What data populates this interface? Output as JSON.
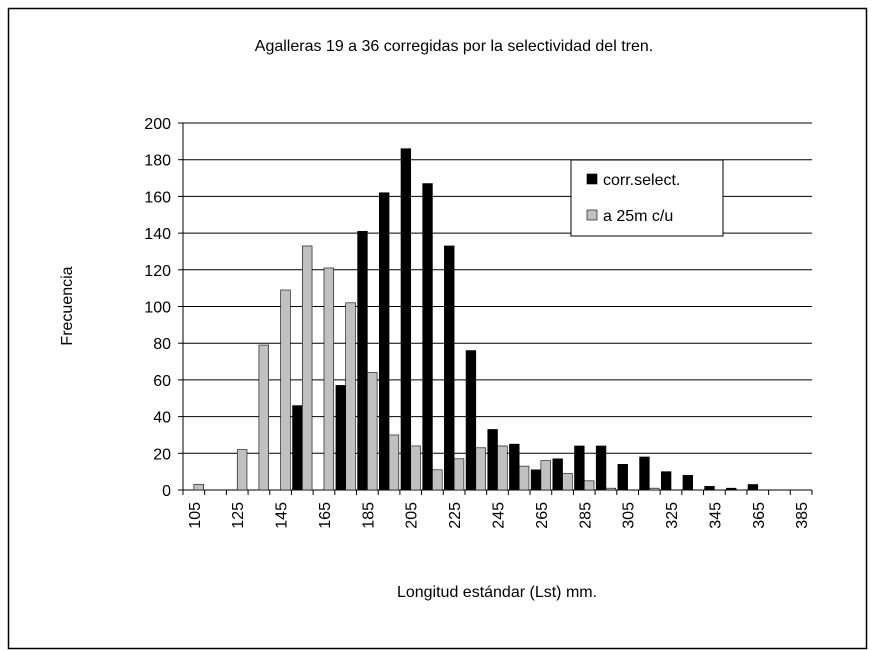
{
  "chart_data": {
    "type": "bar",
    "title": "Agalleras 19 a 36 corregidas por la selectividad del tren.",
    "x_label": "Longitud estándar (Lst) mm.",
    "y_label": "Frecuencia",
    "categories": [
      "105",
      null,
      "125",
      null,
      "145",
      null,
      "165",
      null,
      "185",
      null,
      "205",
      null,
      "225",
      null,
      "245",
      null,
      "265",
      null,
      "285",
      null,
      "305",
      null,
      "325",
      null,
      "345",
      null,
      "365",
      null,
      "385"
    ],
    "series": [
      {
        "name": "corr.select.",
        "color": "#000000",
        "values": [
          0,
          0,
          0,
          0,
          0,
          46,
          0,
          57,
          141,
          162,
          186,
          167,
          133,
          76,
          33,
          25,
          11,
          17,
          24,
          24,
          14,
          18,
          10,
          8,
          2,
          1,
          3,
          0,
          0
        ]
      },
      {
        "name": "a 25m c/u",
        "color": "#c0c0c0",
        "values": [
          3,
          0,
          22,
          79,
          109,
          133,
          121,
          102,
          64,
          30,
          24,
          11,
          17,
          23,
          24,
          13,
          16,
          9,
          5,
          1,
          0,
          1,
          0,
          0,
          0,
          0,
          0,
          0,
          0
        ]
      }
    ],
    "ylim": [
      0,
      200
    ],
    "yticks": [
      0,
      20,
      40,
      60,
      80,
      100,
      120,
      140,
      160,
      180,
      200
    ],
    "grid": true,
    "legend": "upper right"
  }
}
